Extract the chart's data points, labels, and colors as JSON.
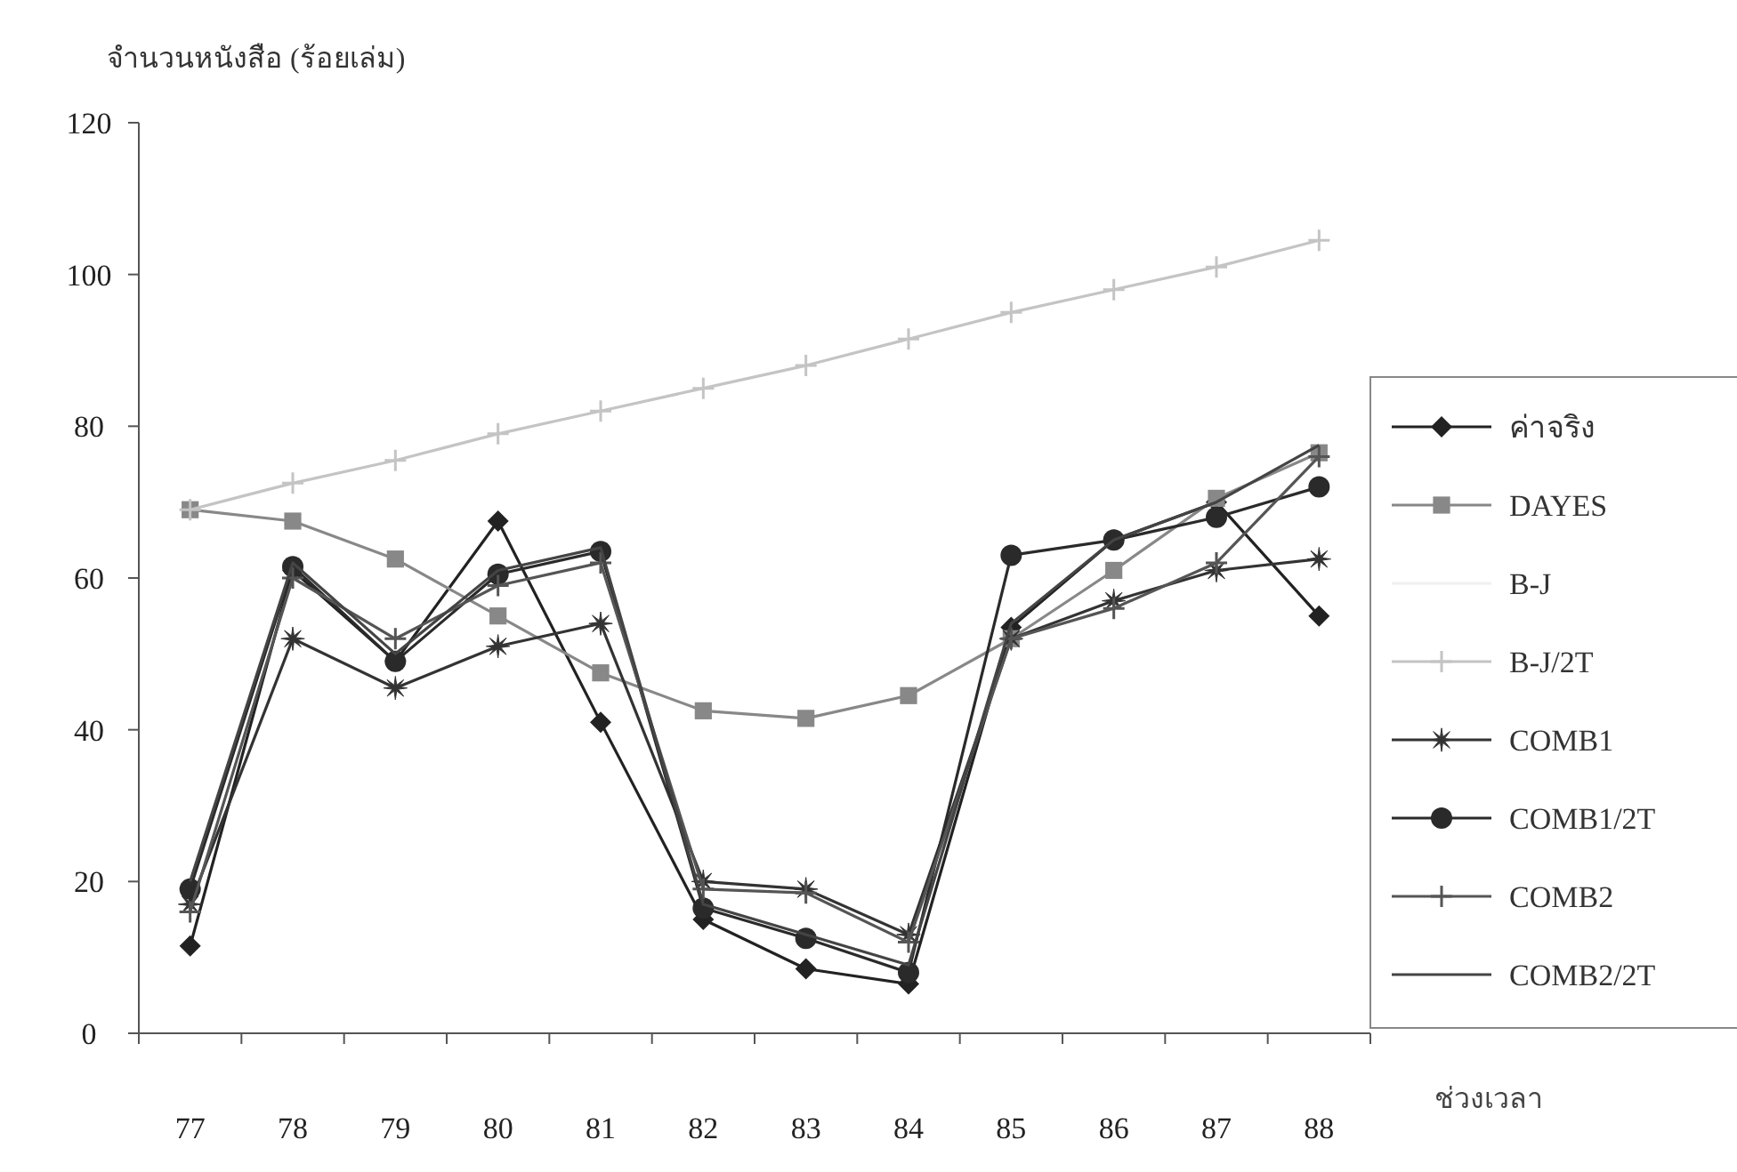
{
  "chart_data": {
    "type": "line",
    "ylabel": "จำนวนหนังสือ (ร้อยเล่ม)",
    "xlabel": "ช่วงเวลา",
    "categories": [
      "77",
      "78",
      "79",
      "80",
      "81",
      "82",
      "83",
      "84",
      "85",
      "86",
      "87",
      "88"
    ],
    "ylim": [
      0,
      120
    ],
    "yticks": [
      0,
      20,
      40,
      60,
      80,
      100,
      120
    ],
    "grid": false,
    "legend": "right",
    "series": [
      {
        "name": "ค่าจริง",
        "color": "#222222",
        "marker": "diamond",
        "values": [
          11.5,
          61,
          49,
          67.5,
          41,
          15,
          8.5,
          6.5,
          53.5,
          65,
          70,
          55
        ]
      },
      {
        "name": "DAYES",
        "color": "#888888",
        "marker": "square",
        "values": [
          69,
          67.5,
          62.5,
          55,
          47.5,
          42.5,
          41.5,
          44.5,
          52,
          61,
          70.5,
          76.5
        ]
      },
      {
        "name": "B-J",
        "color": "#f0f0f0",
        "marker": "none",
        "values": [
          null,
          null,
          null,
          null,
          null,
          null,
          null,
          null,
          null,
          null,
          null,
          null
        ]
      },
      {
        "name": "B-J/2T",
        "color": "#c4c4c4",
        "marker": "cross",
        "values": [
          69,
          72.5,
          75.5,
          79,
          82,
          85,
          88,
          91.5,
          95,
          98,
          101,
          104.5
        ]
      },
      {
        "name": "COMB1",
        "color": "#333333",
        "marker": "star",
        "values": [
          17,
          52,
          45.5,
          51,
          54,
          20,
          19,
          13,
          52,
          57,
          61,
          62.5
        ]
      },
      {
        "name": "COMB1/2T",
        "color": "#2a2a2a",
        "marker": "circle",
        "values": [
          19,
          61.5,
          49,
          60.5,
          63.5,
          16.5,
          12.5,
          8,
          63,
          65,
          68,
          72
        ]
      },
      {
        "name": "COMB2",
        "color": "#555555",
        "marker": "cross",
        "values": [
          16,
          60,
          52,
          59,
          62,
          19,
          18.5,
          12,
          52,
          56,
          62,
          76
        ]
      },
      {
        "name": "COMB2/2T",
        "color": "#444444",
        "marker": "none",
        "values": [
          20,
          62,
          50,
          61,
          64,
          17,
          13,
          9,
          54,
          65,
          70,
          77.5
        ]
      }
    ]
  }
}
